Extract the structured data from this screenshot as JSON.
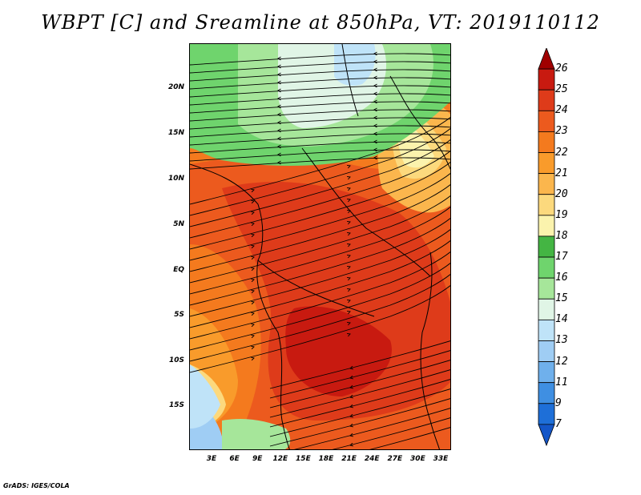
{
  "title": "WBPT [C] and Sreamline at 850hPa, VT: 2019110112",
  "credit": "GrADS: IGES/COLA",
  "map": {
    "lat_labels": [
      "20N",
      "15N",
      "10N",
      "5N",
      "EQ",
      "5S",
      "10S",
      "15S"
    ],
    "lon_labels": [
      "3E",
      "6E",
      "9E",
      "12E",
      "15E",
      "18E",
      "21E",
      "24E",
      "27E",
      "30E",
      "33E"
    ],
    "palette": {
      "13": "#9fcdf4",
      "14": "#bfe3f8",
      "15": "#e0f5e6",
      "16": "#a6e69a",
      "17": "#6fd46d",
      "18": "#fbf3ad",
      "19": "#fcd97d",
      "20": "#fbb64d",
      "21": "#f99b2b",
      "22": "#f47a1e",
      "23": "#ec5a1e",
      "24": "#de3b1a",
      "25": "#c81a10"
    }
  },
  "colorbar": {
    "levels": [
      "26",
      "25",
      "24",
      "23",
      "22",
      "21",
      "20",
      "19",
      "18",
      "17",
      "16",
      "15",
      "14",
      "13",
      "12",
      "11",
      "9",
      "7"
    ],
    "colors": [
      "#a00000",
      "#c81a10",
      "#de3b1a",
      "#ec5a1e",
      "#f47a1e",
      "#f99b2b",
      "#fbb64d",
      "#fcd97d",
      "#fbf3ad",
      "#44b543",
      "#6fd46d",
      "#a6e69a",
      "#e0f5e6",
      "#bfe3f8",
      "#9fcdf4",
      "#6fb0ec",
      "#3f8fe2",
      "#1e6fd8",
      "#1456c8"
    ]
  }
}
